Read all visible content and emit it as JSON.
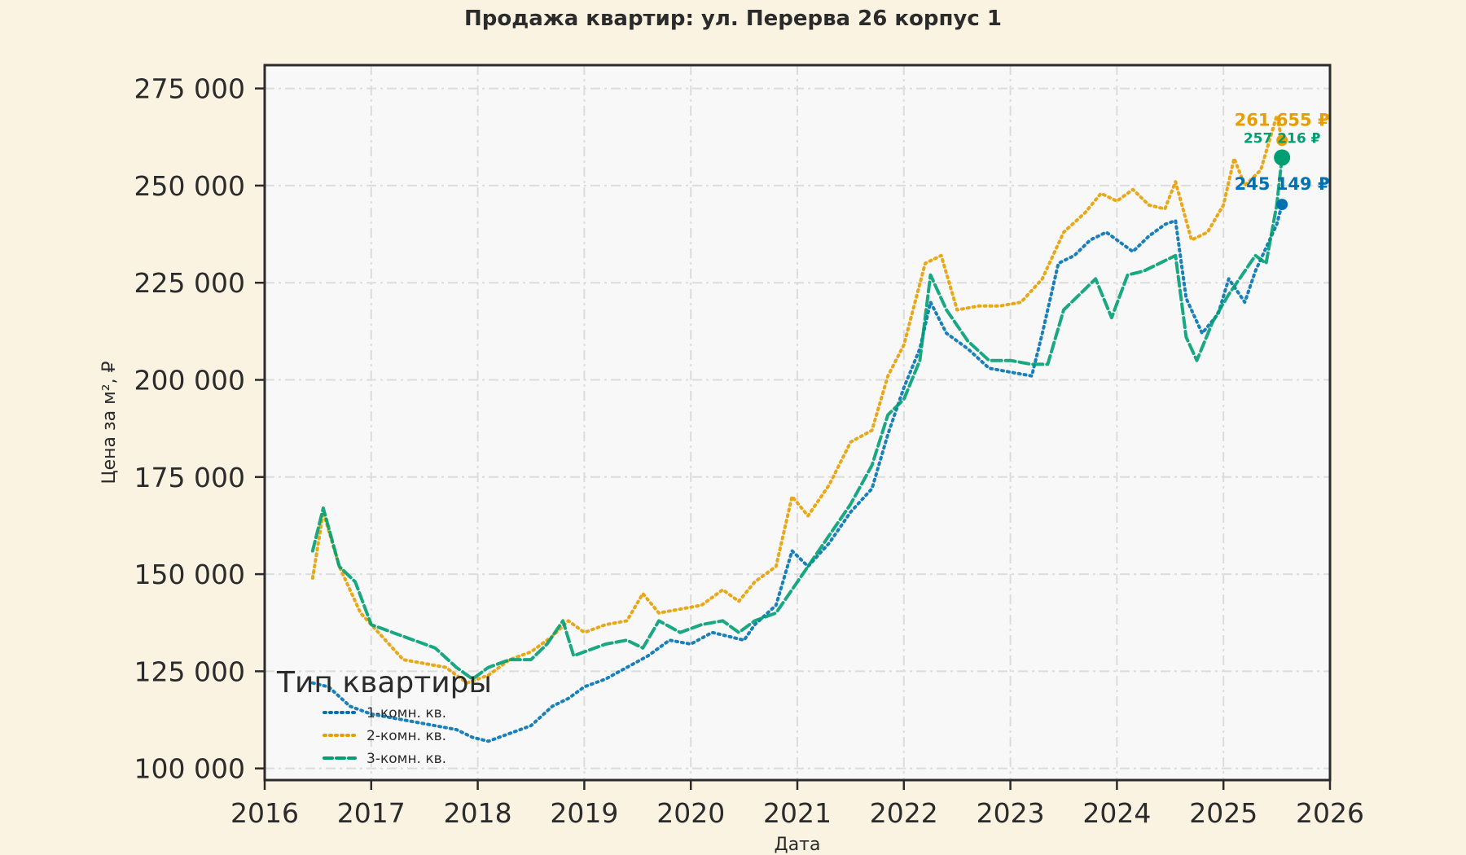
{
  "chart_data": {
    "type": "line",
    "title": "Продажа квартир: ул. Перерва 26 корпус 1",
    "xlabel": "Дата",
    "ylabel": "Цена за м², ₽",
    "xlim": [
      2016,
      2026
    ],
    "ylim": [
      97000,
      281000
    ],
    "x_ticks": [
      2016,
      2017,
      2018,
      2019,
      2020,
      2021,
      2022,
      2023,
      2024,
      2025,
      2026
    ],
    "x_tick_labels": [
      "2016",
      "2017",
      "2018",
      "2019",
      "2020",
      "2021",
      "2022",
      "2023",
      "2024",
      "2025",
      "2026"
    ],
    "y_ticks": [
      100000,
      125000,
      150000,
      175000,
      200000,
      225000,
      250000,
      275000
    ],
    "y_tick_labels": [
      "100 000",
      "125 000",
      "150 000",
      "175 000",
      "200 000",
      "225 000",
      "250 000",
      "275 000"
    ],
    "grid": true,
    "legend": {
      "title": "Тип квартиры",
      "position": "lower-left"
    },
    "series": [
      {
        "name": "1-комн. кв.",
        "color": "#0072b2",
        "style": "dotted",
        "x": [
          2016.45,
          2016.6,
          2016.8,
          2017.0,
          2017.2,
          2017.4,
          2017.6,
          2017.8,
          2017.95,
          2018.1,
          2018.3,
          2018.5,
          2018.7,
          2018.85,
          2019.0,
          2019.2,
          2019.4,
          2019.6,
          2019.8,
          2020.0,
          2020.2,
          2020.35,
          2020.5,
          2020.6,
          2020.8,
          2020.95,
          2021.1,
          2021.3,
          2021.5,
          2021.7,
          2021.85,
          2022.0,
          2022.15,
          2022.25,
          2022.4,
          2022.6,
          2022.8,
          2023.0,
          2023.2,
          2023.3,
          2023.45,
          2023.6,
          2023.75,
          2023.9,
          2024.0,
          2024.15,
          2024.3,
          2024.45,
          2024.55,
          2024.65,
          2024.8,
          2024.95,
          2025.05,
          2025.2,
          2025.3,
          2025.4,
          2025.5,
          2025.55
        ],
        "y": [
          122000,
          121000,
          116000,
          114000,
          113000,
          112000,
          111000,
          110000,
          108000,
          107000,
          109000,
          111000,
          116000,
          118000,
          121000,
          123000,
          126000,
          129000,
          133000,
          132000,
          135000,
          134000,
          133000,
          137000,
          142000,
          156000,
          152000,
          158000,
          166000,
          172000,
          186000,
          198000,
          208000,
          220000,
          212000,
          208000,
          203000,
          202000,
          201000,
          212000,
          230000,
          232000,
          236000,
          238000,
          236000,
          233000,
          237000,
          240000,
          241000,
          221000,
          212000,
          217000,
          226000,
          220000,
          228000,
          234000,
          240000,
          245149
        ]
      },
      {
        "name": "2-комн. кв.",
        "color": "#e69f00",
        "style": "dotted",
        "x": [
          2016.45,
          2016.55,
          2016.7,
          2016.9,
          2017.1,
          2017.3,
          2017.5,
          2017.7,
          2017.9,
          2018.1,
          2018.3,
          2018.5,
          2018.7,
          2018.85,
          2019.0,
          2019.2,
          2019.4,
          2019.55,
          2019.7,
          2019.9,
          2020.1,
          2020.3,
          2020.45,
          2020.6,
          2020.8,
          2020.95,
          2021.1,
          2021.3,
          2021.5,
          2021.7,
          2021.85,
          2022.0,
          2022.2,
          2022.35,
          2022.5,
          2022.7,
          2022.9,
          2023.1,
          2023.3,
          2023.5,
          2023.7,
          2023.85,
          2024.0,
          2024.15,
          2024.3,
          2024.45,
          2024.55,
          2024.7,
          2024.85,
          2025.0,
          2025.1,
          2025.2,
          2025.35,
          2025.5,
          2025.55
        ],
        "y": [
          149000,
          166000,
          152000,
          140000,
          134000,
          128000,
          127000,
          126000,
          122000,
          124000,
          128000,
          130000,
          134000,
          138000,
          135000,
          137000,
          138000,
          145000,
          140000,
          141000,
          142000,
          146000,
          143000,
          148000,
          152000,
          170000,
          165000,
          173000,
          184000,
          187000,
          201000,
          209000,
          230000,
          232000,
          218000,
          219000,
          219000,
          220000,
          226000,
          238000,
          243000,
          248000,
          246000,
          249000,
          245000,
          244000,
          251000,
          236000,
          238000,
          245000,
          257000,
          250000,
          254000,
          268000,
          261655
        ]
      },
      {
        "name": "3-комн. кв.",
        "color": "#009e73",
        "style": "dashed",
        "x": [
          2016.45,
          2016.55,
          2016.7,
          2016.85,
          2017.0,
          2017.2,
          2017.4,
          2017.6,
          2017.8,
          2017.95,
          2018.1,
          2018.3,
          2018.5,
          2018.65,
          2018.8,
          2018.9,
          2019.0,
          2019.2,
          2019.4,
          2019.55,
          2019.7,
          2019.9,
          2020.1,
          2020.3,
          2020.45,
          2020.6,
          2020.8,
          2020.95,
          2021.1,
          2021.3,
          2021.5,
          2021.7,
          2021.85,
          2022.0,
          2022.15,
          2022.25,
          2022.4,
          2022.6,
          2022.8,
          2023.0,
          2023.2,
          2023.35,
          2023.5,
          2023.65,
          2023.8,
          2023.95,
          2024.1,
          2024.25,
          2024.4,
          2024.55,
          2024.65,
          2024.75,
          2024.9,
          2025.05,
          2025.2,
          2025.3,
          2025.4,
          2025.5,
          2025.55
        ],
        "y": [
          156000,
          167000,
          152000,
          148000,
          137000,
          135000,
          133000,
          131000,
          126000,
          123000,
          126000,
          128000,
          128000,
          132000,
          138000,
          129000,
          130000,
          132000,
          133000,
          131000,
          138000,
          135000,
          137000,
          138000,
          135000,
          138000,
          140000,
          146000,
          152000,
          160000,
          168000,
          178000,
          191000,
          195000,
          205000,
          227000,
          218000,
          210000,
          205000,
          205000,
          204000,
          204000,
          218000,
          222000,
          226000,
          216000,
          227000,
          228000,
          230000,
          232000,
          211000,
          205000,
          215000,
          222000,
          228000,
          232000,
          230000,
          245000,
          257216
        ]
      }
    ],
    "annotations": [
      {
        "text": "261 655 ₽",
        "x": 2025.55,
        "y": 261655,
        "color": "#e69f00",
        "size": 21
      },
      {
        "text": "257 216 ₽",
        "x": 2025.55,
        "y": 257216,
        "color": "#009e73",
        "size": 17
      },
      {
        "text": "245 149 ₽",
        "x": 2025.55,
        "y": 245149,
        "color": "#0072b2",
        "size": 21
      }
    ]
  }
}
